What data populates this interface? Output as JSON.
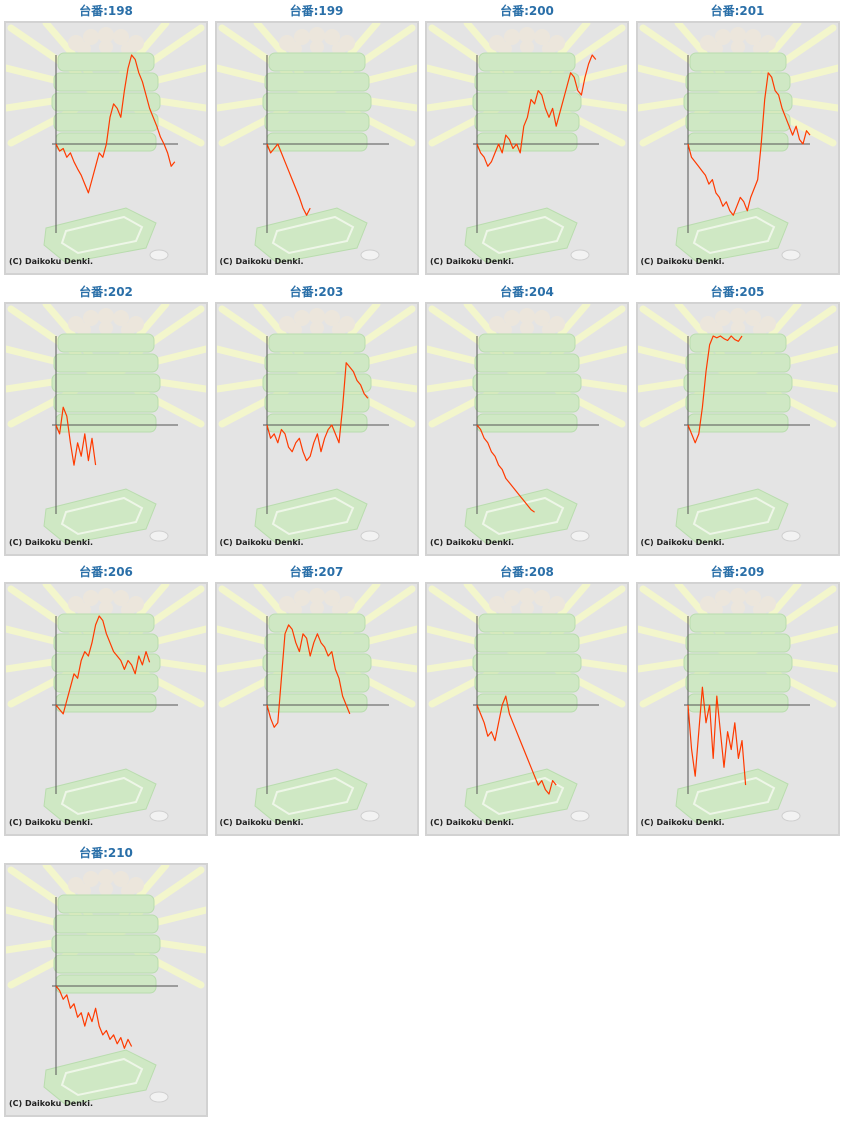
{
  "page": {
    "copyright_text": "(C) Daikoku Denki."
  },
  "colors": {
    "series_line": "#ff3a00",
    "axis_line": "#555555",
    "panel_background": "#e4e4e4",
    "panel_border": "#d2d2d2",
    "title_text": "#2a6fa8",
    "watermark_green": "#cfe8c4",
    "watermark_rays": "#f3f6cc"
  },
  "watermark_icon": "pachinko-machine-watermark",
  "chart_data": [
    {
      "type": "line",
      "title": "台番:198",
      "ylim": [
        -100,
        100
      ],
      "values": [
        0,
        -8,
        -5,
        -15,
        -10,
        -20,
        -28,
        -35,
        -45,
        -55,
        -40,
        -25,
        -10,
        -15,
        0,
        30,
        45,
        40,
        30,
        60,
        85,
        100,
        95,
        80,
        70,
        55,
        40,
        30,
        20,
        8,
        0,
        -10,
        -25,
        -20
      ]
    },
    {
      "type": "line",
      "title": "台番:199",
      "ylim": [
        -100,
        100
      ],
      "values": [
        0,
        -10,
        -5,
        0,
        -10,
        -20,
        -30,
        -40,
        -50,
        -60,
        -72,
        -80,
        -72
      ]
    },
    {
      "type": "line",
      "title": "台番:200",
      "ylim": [
        -100,
        100
      ],
      "values": [
        0,
        -10,
        -15,
        -25,
        -20,
        -10,
        0,
        -10,
        10,
        5,
        -5,
        0,
        -10,
        20,
        30,
        50,
        45,
        60,
        55,
        40,
        30,
        40,
        20,
        35,
        50,
        65,
        80,
        75,
        60,
        55,
        75,
        90,
        100,
        95
      ]
    },
    {
      "type": "line",
      "title": "台番:201",
      "ylim": [
        -100,
        100
      ],
      "values": [
        0,
        -15,
        -20,
        -25,
        -30,
        -35,
        -45,
        -40,
        -55,
        -60,
        -70,
        -65,
        -75,
        -80,
        -70,
        -60,
        -65,
        -75,
        -60,
        -50,
        -40,
        0,
        50,
        80,
        75,
        60,
        55,
        40,
        30,
        20,
        10,
        20,
        5,
        0,
        15,
        10
      ]
    },
    {
      "type": "line",
      "title": "台番:202",
      "ylim": [
        -100,
        100
      ],
      "values": [
        0,
        -10,
        20,
        10,
        -20,
        -45,
        -20,
        -35,
        -10,
        -40,
        -15,
        -45
      ]
    },
    {
      "type": "line",
      "title": "台番:203",
      "ylim": [
        -100,
        100
      ],
      "values": [
        0,
        -15,
        -10,
        -20,
        -5,
        -10,
        -25,
        -30,
        -20,
        -15,
        -30,
        -40,
        -35,
        -20,
        -10,
        -30,
        -15,
        -5,
        0,
        -10,
        -20,
        20,
        70,
        65,
        60,
        50,
        45,
        35,
        30
      ]
    },
    {
      "type": "line",
      "title": "台番:204",
      "ylim": [
        -100,
        100
      ],
      "values": [
        0,
        -5,
        -15,
        -20,
        -30,
        -35,
        -45,
        -50,
        -60,
        -65,
        -70,
        -75,
        -80,
        -85,
        -90,
        -95,
        -98
      ]
    },
    {
      "type": "line",
      "title": "台番:205",
      "ylim": [
        -100,
        100
      ],
      "values": [
        0,
        -10,
        -20,
        -10,
        20,
        60,
        90,
        100,
        98,
        100,
        97,
        95,
        100,
        96,
        94,
        100
      ]
    },
    {
      "type": "line",
      "title": "台番:206",
      "ylim": [
        -100,
        100
      ],
      "values": [
        0,
        -5,
        -10,
        5,
        20,
        35,
        30,
        50,
        60,
        55,
        70,
        90,
        100,
        95,
        80,
        70,
        60,
        55,
        50,
        40,
        50,
        45,
        35,
        55,
        45,
        60,
        48
      ]
    },
    {
      "type": "line",
      "title": "台番:207",
      "ylim": [
        -100,
        100
      ],
      "values": [
        0,
        -15,
        -25,
        -20,
        30,
        80,
        90,
        85,
        70,
        60,
        80,
        75,
        55,
        70,
        80,
        70,
        65,
        55,
        60,
        40,
        30,
        10,
        0,
        -10
      ]
    },
    {
      "type": "line",
      "title": "台番:208",
      "ylim": [
        -100,
        100
      ],
      "values": [
        0,
        -10,
        -20,
        -35,
        -30,
        -40,
        -20,
        0,
        10,
        -10,
        -20,
        -30,
        -40,
        -50,
        -60,
        -70,
        -80,
        -90,
        -85,
        -95,
        -100,
        -85,
        -90
      ]
    },
    {
      "type": "line",
      "title": "台番:209",
      "ylim": [
        -100,
        100
      ],
      "values": [
        0,
        -50,
        -80,
        -30,
        20,
        -20,
        0,
        -60,
        10,
        -30,
        -70,
        -30,
        -50,
        -20,
        -60,
        -40,
        -90
      ]
    },
    {
      "type": "line",
      "title": "台番:210",
      "ylim": [
        -100,
        100
      ],
      "values": [
        0,
        -5,
        -15,
        -10,
        -25,
        -20,
        -35,
        -30,
        -45,
        -30,
        -40,
        -25,
        -45,
        -55,
        -50,
        -60,
        -55,
        -65,
        -58,
        -70,
        -60,
        -68
      ]
    }
  ]
}
